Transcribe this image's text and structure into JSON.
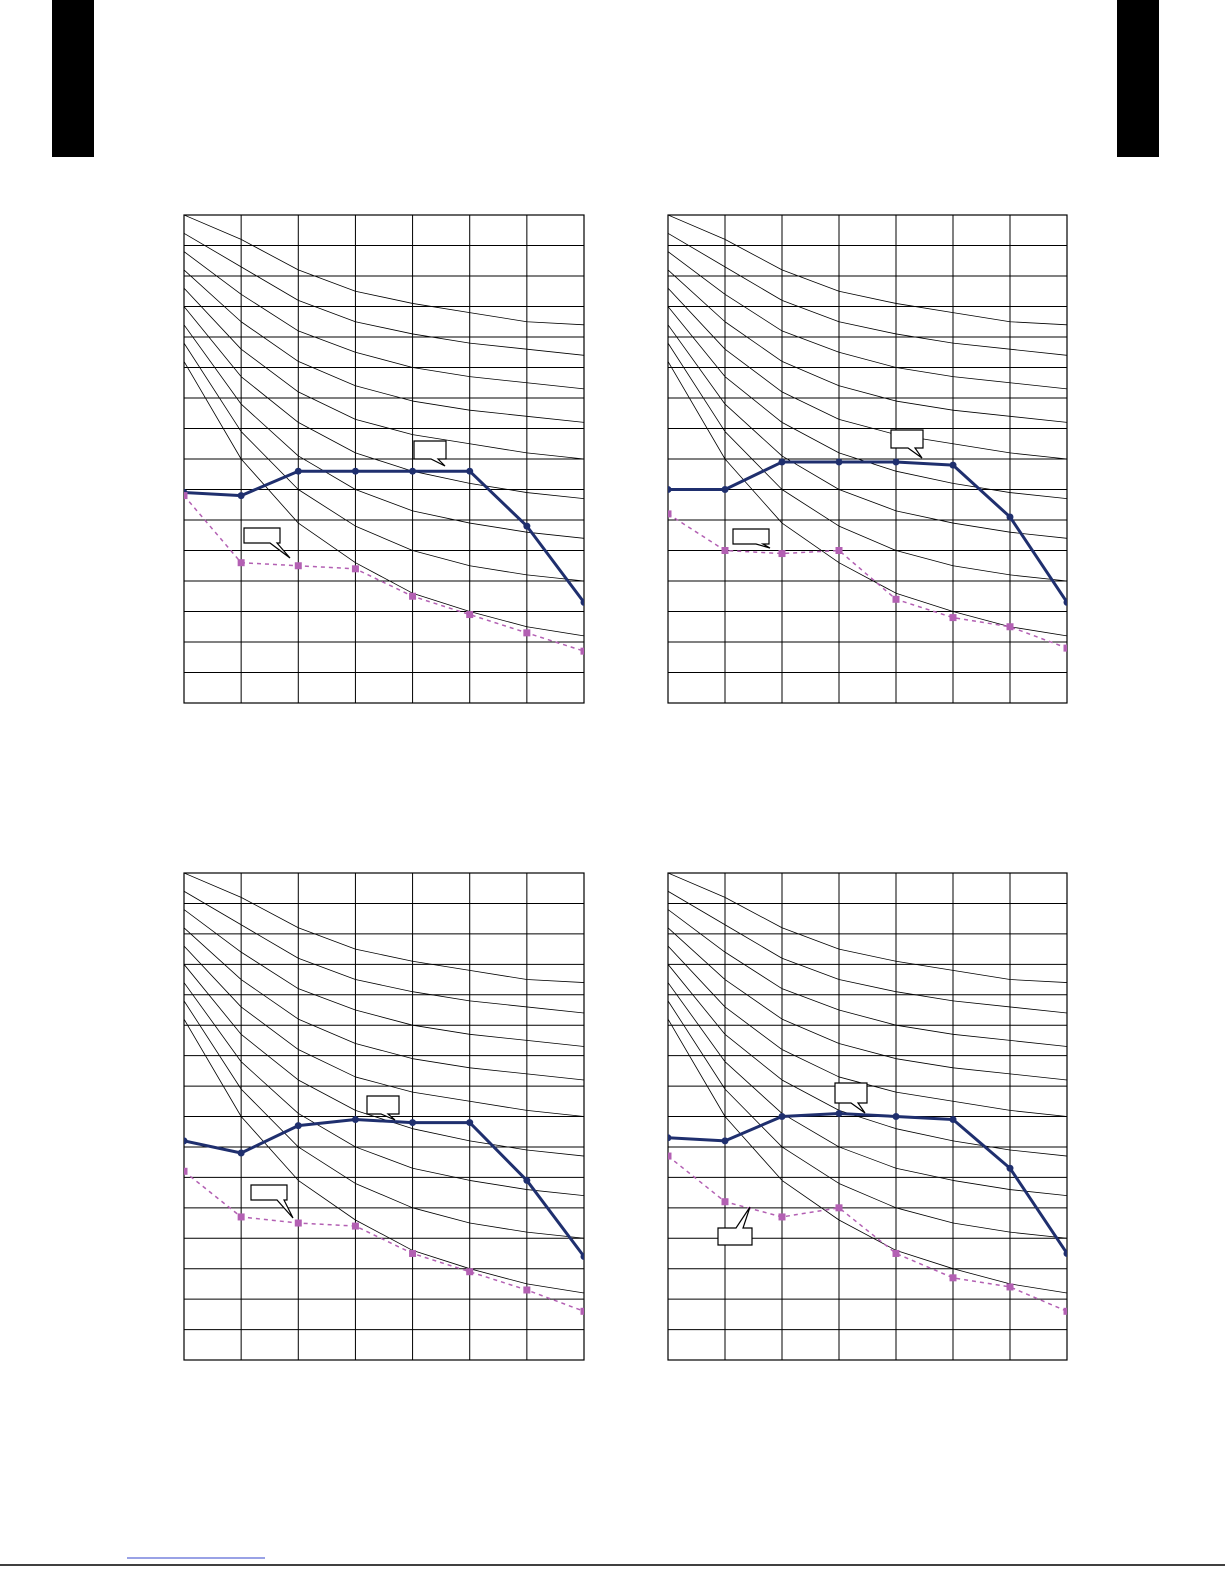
{
  "chart_data": [
    {
      "type": "line",
      "xlim": [
        0,
        7
      ],
      "ylim": [
        0,
        16
      ],
      "xticks": [
        0,
        1,
        2,
        3,
        4,
        5,
        6,
        7
      ],
      "yticks": [
        0,
        1,
        2,
        3,
        4,
        5,
        6,
        7,
        8,
        9,
        10,
        11,
        12,
        13,
        14,
        15,
        16
      ],
      "grid": true,
      "x": [
        0,
        1,
        2,
        3,
        4,
        5,
        6,
        7
      ],
      "series": [
        {
          "color": "#000000",
          "style": "thin",
          "values": [
            16,
            15.2,
            14.2,
            13.5,
            13.1,
            12.8,
            12.5,
            12.4
          ]
        },
        {
          "color": "#000000",
          "style": "thin",
          "values": [
            15.4,
            14.3,
            13.2,
            12.5,
            12.1,
            11.8,
            11.6,
            11.4
          ]
        },
        {
          "color": "#000000",
          "style": "thin",
          "values": [
            14.8,
            13.4,
            12.2,
            11.5,
            11.0,
            10.7,
            10.5,
            10.3
          ]
        },
        {
          "color": "#000000",
          "style": "thin",
          "values": [
            14.2,
            12.5,
            11.2,
            10.4,
            9.9,
            9.6,
            9.4,
            9.2
          ]
        },
        {
          "color": "#000000",
          "style": "thin",
          "values": [
            13.6,
            11.6,
            10.2,
            9.3,
            8.8,
            8.5,
            8.2,
            8.0
          ]
        },
        {
          "color": "#000000",
          "style": "thin",
          "values": [
            13.0,
            10.7,
            9.2,
            8.2,
            7.6,
            7.2,
            6.9,
            6.7
          ]
        },
        {
          "color": "#000000",
          "style": "thin",
          "values": [
            12.4,
            9.8,
            8.1,
            7.0,
            6.3,
            5.9,
            5.6,
            5.4
          ]
        },
        {
          "color": "#000000",
          "style": "thin",
          "values": [
            11.8,
            8.9,
            7.0,
            5.8,
            5.0,
            4.5,
            4.2,
            4.0
          ]
        },
        {
          "color": "#000000",
          "style": "thin",
          "values": [
            11.2,
            8.0,
            5.9,
            4.6,
            3.6,
            3.0,
            2.5,
            2.2
          ]
        },
        {
          "color": "#1f2f6e",
          "style": "thick",
          "marker": "circle",
          "values": [
            6.9,
            6.8,
            7.6,
            7.6,
            7.6,
            7.6,
            5.8,
            3.3
          ]
        },
        {
          "color": "#b360b3",
          "style": "dashed",
          "marker": "square",
          "values": [
            6.8,
            4.6,
            4.5,
            4.4,
            3.5,
            2.9,
            2.3,
            1.7
          ]
        }
      ]
    },
    {
      "type": "line",
      "xlim": [
        0,
        7
      ],
      "ylim": [
        0,
        16
      ],
      "xticks": [
        0,
        1,
        2,
        3,
        4,
        5,
        6,
        7
      ],
      "yticks": [
        0,
        1,
        2,
        3,
        4,
        5,
        6,
        7,
        8,
        9,
        10,
        11,
        12,
        13,
        14,
        15,
        16
      ],
      "grid": true,
      "x": [
        0,
        1,
        2,
        3,
        4,
        5,
        6,
        7
      ],
      "series": [
        {
          "color": "#000000",
          "style": "thin",
          "values": [
            16,
            15.2,
            14.2,
            13.5,
            13.1,
            12.8,
            12.5,
            12.4
          ]
        },
        {
          "color": "#000000",
          "style": "thin",
          "values": [
            15.4,
            14.3,
            13.2,
            12.5,
            12.1,
            11.8,
            11.6,
            11.4
          ]
        },
        {
          "color": "#000000",
          "style": "thin",
          "values": [
            14.8,
            13.4,
            12.2,
            11.5,
            11.0,
            10.7,
            10.5,
            10.3
          ]
        },
        {
          "color": "#000000",
          "style": "thin",
          "values": [
            14.2,
            12.5,
            11.2,
            10.4,
            9.9,
            9.6,
            9.4,
            9.2
          ]
        },
        {
          "color": "#000000",
          "style": "thin",
          "values": [
            13.6,
            11.6,
            10.2,
            9.3,
            8.8,
            8.5,
            8.2,
            8.0
          ]
        },
        {
          "color": "#000000",
          "style": "thin",
          "values": [
            13.0,
            10.7,
            9.2,
            8.2,
            7.6,
            7.2,
            6.9,
            6.7
          ]
        },
        {
          "color": "#000000",
          "style": "thin",
          "values": [
            12.4,
            9.8,
            8.1,
            7.0,
            6.3,
            5.9,
            5.6,
            5.4
          ]
        },
        {
          "color": "#000000",
          "style": "thin",
          "values": [
            11.8,
            8.9,
            7.0,
            5.8,
            5.0,
            4.5,
            4.2,
            4.0
          ]
        },
        {
          "color": "#000000",
          "style": "thin",
          "values": [
            11.2,
            8.0,
            5.9,
            4.6,
            3.6,
            3.0,
            2.5,
            2.2
          ]
        },
        {
          "color": "#1f2f6e",
          "style": "thick",
          "marker": "circle",
          "values": [
            7.0,
            7.0,
            7.9,
            7.9,
            7.9,
            7.8,
            6.1,
            3.3
          ]
        },
        {
          "color": "#b360b3",
          "style": "dashed",
          "marker": "square",
          "values": [
            6.2,
            5.0,
            4.9,
            5.0,
            3.4,
            2.8,
            2.5,
            1.8
          ]
        }
      ]
    },
    {
      "type": "line",
      "xlim": [
        0,
        7
      ],
      "ylim": [
        0,
        16
      ],
      "xticks": [
        0,
        1,
        2,
        3,
        4,
        5,
        6,
        7
      ],
      "yticks": [
        0,
        1,
        2,
        3,
        4,
        5,
        6,
        7,
        8,
        9,
        10,
        11,
        12,
        13,
        14,
        15,
        16
      ],
      "grid": true,
      "x": [
        0,
        1,
        2,
        3,
        4,
        5,
        6,
        7
      ],
      "series": [
        {
          "color": "#000000",
          "style": "thin",
          "values": [
            16,
            15.2,
            14.2,
            13.5,
            13.1,
            12.8,
            12.5,
            12.4
          ]
        },
        {
          "color": "#000000",
          "style": "thin",
          "values": [
            15.4,
            14.3,
            13.2,
            12.5,
            12.1,
            11.8,
            11.6,
            11.4
          ]
        },
        {
          "color": "#000000",
          "style": "thin",
          "values": [
            14.8,
            13.4,
            12.2,
            11.5,
            11.0,
            10.7,
            10.5,
            10.3
          ]
        },
        {
          "color": "#000000",
          "style": "thin",
          "values": [
            14.2,
            12.5,
            11.2,
            10.4,
            9.9,
            9.6,
            9.4,
            9.2
          ]
        },
        {
          "color": "#000000",
          "style": "thin",
          "values": [
            13.6,
            11.6,
            10.2,
            9.3,
            8.8,
            8.5,
            8.2,
            8.0
          ]
        },
        {
          "color": "#000000",
          "style": "thin",
          "values": [
            13.0,
            10.7,
            9.2,
            8.2,
            7.6,
            7.2,
            6.9,
            6.7
          ]
        },
        {
          "color": "#000000",
          "style": "thin",
          "values": [
            12.4,
            9.8,
            8.1,
            7.0,
            6.3,
            5.9,
            5.6,
            5.4
          ]
        },
        {
          "color": "#000000",
          "style": "thin",
          "values": [
            11.8,
            8.9,
            7.0,
            5.8,
            5.0,
            4.5,
            4.2,
            4.0
          ]
        },
        {
          "color": "#000000",
          "style": "thin",
          "values": [
            11.2,
            8.0,
            5.9,
            4.6,
            3.6,
            3.0,
            2.5,
            2.2
          ]
        },
        {
          "color": "#1f2f6e",
          "style": "thick",
          "marker": "circle",
          "values": [
            7.2,
            6.8,
            7.7,
            7.9,
            7.8,
            7.8,
            5.9,
            3.4
          ]
        },
        {
          "color": "#b360b3",
          "style": "dashed",
          "marker": "square",
          "values": [
            6.2,
            4.7,
            4.5,
            4.4,
            3.5,
            2.9,
            2.3,
            1.6
          ]
        }
      ]
    },
    {
      "type": "line",
      "xlim": [
        0,
        7
      ],
      "ylim": [
        0,
        16
      ],
      "xticks": [
        0,
        1,
        2,
        3,
        4,
        5,
        6,
        7
      ],
      "yticks": [
        0,
        1,
        2,
        3,
        4,
        5,
        6,
        7,
        8,
        9,
        10,
        11,
        12,
        13,
        14,
        15,
        16
      ],
      "grid": true,
      "x": [
        0,
        1,
        2,
        3,
        4,
        5,
        6,
        7
      ],
      "series": [
        {
          "color": "#000000",
          "style": "thin",
          "values": [
            16,
            15.2,
            14.2,
            13.5,
            13.1,
            12.8,
            12.5,
            12.4
          ]
        },
        {
          "color": "#000000",
          "style": "thin",
          "values": [
            15.4,
            14.3,
            13.2,
            12.5,
            12.1,
            11.8,
            11.6,
            11.4
          ]
        },
        {
          "color": "#000000",
          "style": "thin",
          "values": [
            14.8,
            13.4,
            12.2,
            11.5,
            11.0,
            10.7,
            10.5,
            10.3
          ]
        },
        {
          "color": "#000000",
          "style": "thin",
          "values": [
            14.2,
            12.5,
            11.2,
            10.4,
            9.9,
            9.6,
            9.4,
            9.2
          ]
        },
        {
          "color": "#000000",
          "style": "thin",
          "values": [
            13.6,
            11.6,
            10.2,
            9.3,
            8.8,
            8.5,
            8.2,
            8.0
          ]
        },
        {
          "color": "#000000",
          "style": "thin",
          "values": [
            13.0,
            10.7,
            9.2,
            8.2,
            7.6,
            7.2,
            6.9,
            6.7
          ]
        },
        {
          "color": "#000000",
          "style": "thin",
          "values": [
            12.4,
            9.8,
            8.1,
            7.0,
            6.3,
            5.9,
            5.6,
            5.4
          ]
        },
        {
          "color": "#000000",
          "style": "thin",
          "values": [
            11.8,
            8.9,
            7.0,
            5.8,
            5.0,
            4.5,
            4.2,
            4.0
          ]
        },
        {
          "color": "#000000",
          "style": "thin",
          "values": [
            11.2,
            8.0,
            5.9,
            4.6,
            3.6,
            3.0,
            2.5,
            2.2
          ]
        },
        {
          "color": "#1f2f6e",
          "style": "thick",
          "marker": "circle",
          "values": [
            7.3,
            7.2,
            8.0,
            8.1,
            8.0,
            7.9,
            6.3,
            3.5
          ]
        },
        {
          "color": "#b360b3",
          "style": "dashed",
          "marker": "square",
          "values": [
            6.7,
            5.2,
            4.7,
            5.0,
            3.5,
            2.7,
            2.4,
            1.6
          ]
        }
      ]
    }
  ]
}
